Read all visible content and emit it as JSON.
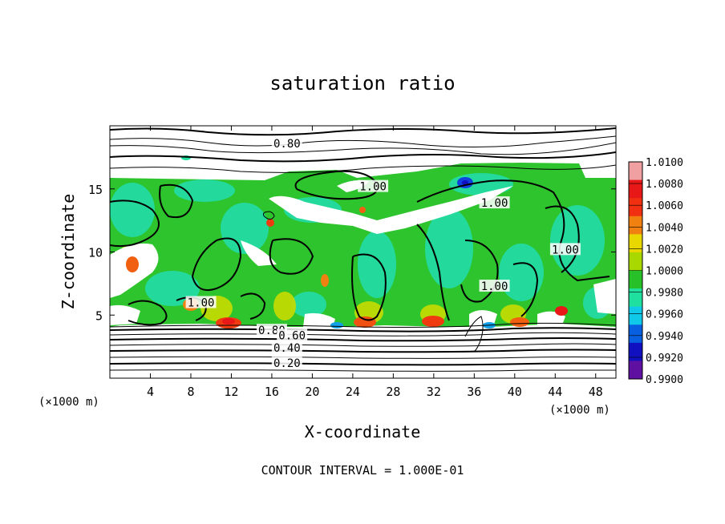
{
  "chart_data": {
    "type": "heatmap",
    "title": "saturation ratio",
    "xlabel": "X-coordinate",
    "ylabel": "Z-coordinate",
    "x_unit": "(×1000 m)",
    "y_unit": "(×1000 m)",
    "xlim": [
      0,
      50
    ],
    "ylim": [
      0,
      20
    ],
    "x_ticks": [
      4,
      8,
      12,
      16,
      20,
      24,
      28,
      32,
      36,
      40,
      44,
      48
    ],
    "y_ticks": [
      5,
      10,
      15
    ],
    "colorbar": {
      "labels": [
        "1.0100",
        "1.0080",
        "1.0060",
        "1.0040",
        "1.0020",
        "1.0000",
        "0.9980",
        "0.9960",
        "0.9940",
        "0.9920",
        "0.9900"
      ],
      "colors": [
        "#f0a0a0",
        "#e81818",
        "#f03010",
        "#f08010",
        "#e8d800",
        "#a8d800",
        "#28c028",
        "#20e0a0",
        "#10c8e8",
        "#0860e0",
        "#1010c0",
        "#6010a0"
      ]
    },
    "contour_labels": [
      {
        "text": "0.80",
        "x": 17.5,
        "z": 18.6
      },
      {
        "text": "1.00",
        "x": 26.0,
        "z": 15.2
      },
      {
        "text": "1.00",
        "x": 38.0,
        "z": 13.9
      },
      {
        "text": "1.00",
        "x": 45.0,
        "z": 10.2
      },
      {
        "text": "1.00",
        "x": 38.0,
        "z": 7.3
      },
      {
        "text": "1.00",
        "x": 9.0,
        "z": 6.0
      },
      {
        "text": "0.80",
        "x": 16.0,
        "z": 3.8
      },
      {
        "text": "0.60",
        "x": 18.0,
        "z": 3.4
      },
      {
        "text": "0.40",
        "x": 17.5,
        "z": 2.4
      },
      {
        "text": "0.20",
        "x": 17.5,
        "z": 1.2
      }
    ],
    "footer": "CONTOUR INTERVAL = 1.000E-01"
  }
}
